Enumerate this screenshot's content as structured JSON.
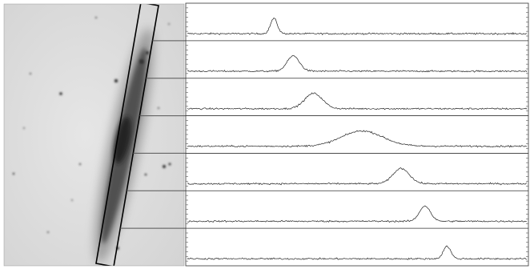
{
  "chart_data": {
    "type": "line",
    "panels": [
      {
        "peak_x": 0.255,
        "width": 0.01,
        "amplitude": 0.55
      },
      {
        "peak_x": 0.312,
        "width": 0.018,
        "amplitude": 0.55
      },
      {
        "peak_x": 0.372,
        "width": 0.026,
        "amplitude": 0.55
      },
      {
        "peak_x": 0.515,
        "width": 0.06,
        "amplitude": 0.55
      },
      {
        "peak_x": 0.63,
        "width": 0.024,
        "amplitude": 0.55
      },
      {
        "peak_x": 0.7,
        "width": 0.016,
        "amplitude": 0.55
      },
      {
        "peak_x": 0.765,
        "width": 0.011,
        "amplitude": 0.45
      }
    ],
    "x_range": [
      0,
      1
    ],
    "baseline": 0.08,
    "noise": 0.05,
    "grid": false
  },
  "image": {
    "background": "#dcdcdc",
    "slit_color": "#000000",
    "line_color": "#222222"
  }
}
